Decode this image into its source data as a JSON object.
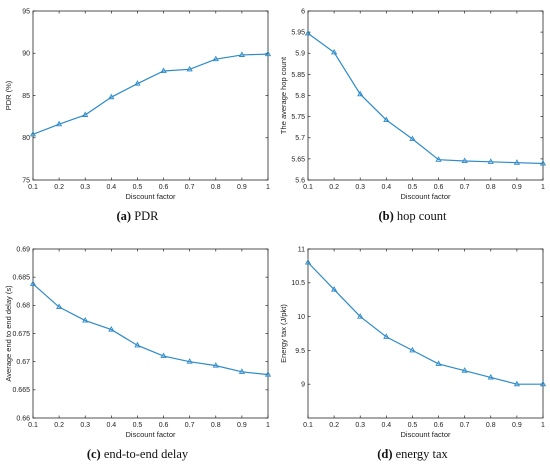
{
  "colors": {
    "series": "#2e8bc9",
    "axis": "#262626"
  },
  "chart_data": [
    {
      "type": "line",
      "caption_letter": "(a)",
      "caption_text": "PDR",
      "xlabel": "Discount factor",
      "ylabel": "PDR (%)",
      "xlim": [
        0.1,
        1
      ],
      "ylim": [
        75,
        95
      ],
      "xticks": [
        "0.1",
        "0.2",
        "0.3",
        "0.4",
        "0.5",
        "0.6",
        "0.7",
        "0.8",
        "0.9",
        "1"
      ],
      "yticks": [
        "75",
        "80",
        "85",
        "90",
        "95"
      ],
      "x": [
        0.1,
        0.2,
        0.3,
        0.4,
        0.5,
        0.6,
        0.7,
        0.8,
        0.9,
        1.0
      ],
      "y": [
        80.4,
        81.6,
        82.7,
        84.8,
        86.4,
        87.9,
        88.1,
        89.3,
        89.8,
        89.9
      ]
    },
    {
      "type": "line",
      "caption_letter": "(b)",
      "caption_text": "hop count",
      "xlabel": "Discount factor",
      "ylabel": "The average hop count",
      "xlim": [
        0.1,
        1
      ],
      "ylim": [
        5.6,
        6
      ],
      "xticks": [
        "0.1",
        "0.2",
        "0.3",
        "0.4",
        "0.5",
        "0.6",
        "0.7",
        "0.8",
        "0.9",
        "1"
      ],
      "yticks": [
        "5.6",
        "5.65",
        "5.7",
        "5.75",
        "5.8",
        "5.85",
        "5.9",
        "5.95",
        "6"
      ],
      "x": [
        0.1,
        0.2,
        0.3,
        0.4,
        0.5,
        0.6,
        0.7,
        0.8,
        0.9,
        1.0
      ],
      "y": [
        5.947,
        5.902,
        5.803,
        5.742,
        5.697,
        5.648,
        5.645,
        5.643,
        5.641,
        5.639
      ]
    },
    {
      "type": "line",
      "caption_letter": "(c)",
      "caption_text": "end-to-end delay",
      "xlabel": "Discount factor",
      "ylabel": "Average end to end delay (s)",
      "xlim": [
        0.1,
        1
      ],
      "ylim": [
        0.66,
        0.69
      ],
      "xticks": [
        "0.1",
        "0.2",
        "0.3",
        "0.4",
        "0.5",
        "0.6",
        "0.7",
        "0.8",
        "0.9",
        "1"
      ],
      "yticks": [
        "0.66",
        "0.665",
        "0.67",
        "0.675",
        "0.68",
        "0.685",
        "0.69"
      ],
      "x": [
        0.1,
        0.2,
        0.3,
        0.4,
        0.5,
        0.6,
        0.7,
        0.8,
        0.9,
        1.0
      ],
      "y": [
        0.6838,
        0.6797,
        0.6773,
        0.6757,
        0.6729,
        0.671,
        0.67,
        0.6693,
        0.6682,
        0.6677
      ]
    },
    {
      "type": "line",
      "caption_letter": "(d)",
      "caption_text": "energy tax",
      "xlabel": "Discount factor",
      "ylabel": "Energy tax (J/pkt)",
      "xlim": [
        0.1,
        1
      ],
      "ylim": [
        8.5,
        11
      ],
      "xticks": [
        "0.1",
        "0.2",
        "0.3",
        "0.4",
        "0.5",
        "0.6",
        "0.7",
        "0.8",
        "0.9",
        "1"
      ],
      "yticks": [
        "9",
        "9.5",
        "10",
        "10.5",
        "11"
      ],
      "x": [
        0.1,
        0.2,
        0.3,
        0.4,
        0.5,
        0.6,
        0.7,
        0.8,
        0.9,
        1.0
      ],
      "y": [
        10.8,
        10.4,
        10.0,
        9.7,
        9.5,
        9.3,
        9.2,
        9.1,
        9.0,
        9.0
      ]
    }
  ]
}
